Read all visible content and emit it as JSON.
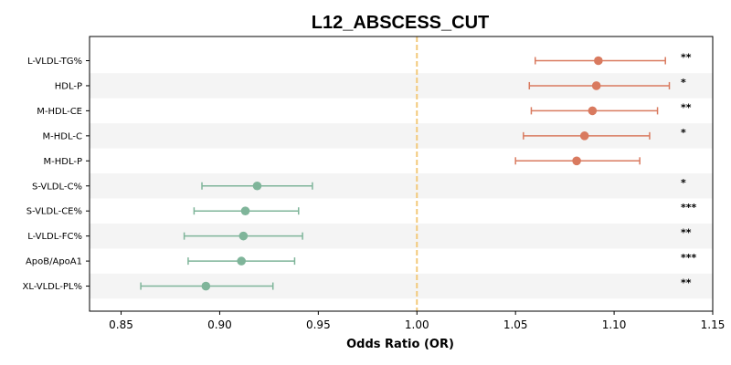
{
  "chart_data": {
    "type": "forest",
    "title": "L12_ABSCESS_CUT",
    "xlabel": "Odds Ratio (OR)",
    "xlim": [
      0.834,
      1.15
    ],
    "xticks": [
      0.85,
      0.9,
      0.95,
      1.0,
      1.05,
      1.1,
      1.15
    ],
    "xtick_labels": [
      "0.85",
      "0.90",
      "0.95",
      "1.00",
      "1.05",
      "1.10",
      "1.15"
    ],
    "reference_line": 1.0,
    "reference_line_style": "dashed",
    "row_banding": true,
    "colors": {
      "increase": "#d97a5f",
      "decrease": "#7fb59a",
      "reference": "#f2c97a",
      "band": "#f4f4f4"
    },
    "rows": [
      {
        "label": "L-VLDL-TG%",
        "or": 1.092,
        "ci_low": 1.06,
        "ci_high": 1.126,
        "sig": "**",
        "direction": "increase"
      },
      {
        "label": "HDL-P",
        "or": 1.091,
        "ci_low": 1.057,
        "ci_high": 1.128,
        "sig": "*",
        "direction": "increase"
      },
      {
        "label": "M-HDL-CE",
        "or": 1.089,
        "ci_low": 1.058,
        "ci_high": 1.122,
        "sig": "**",
        "direction": "increase"
      },
      {
        "label": "M-HDL-C",
        "or": 1.085,
        "ci_low": 1.054,
        "ci_high": 1.118,
        "sig": "*",
        "direction": "increase"
      },
      {
        "label": "M-HDL-P",
        "or": 1.081,
        "ci_low": 1.05,
        "ci_high": 1.113,
        "sig": "",
        "direction": "increase"
      },
      {
        "label": "S-VLDL-C%",
        "or": 0.919,
        "ci_low": 0.891,
        "ci_high": 0.947,
        "sig": "*",
        "direction": "decrease"
      },
      {
        "label": "S-VLDL-CE%",
        "or": 0.913,
        "ci_low": 0.887,
        "ci_high": 0.94,
        "sig": "***",
        "direction": "decrease"
      },
      {
        "label": "L-VLDL-FC%",
        "or": 0.912,
        "ci_low": 0.882,
        "ci_high": 0.942,
        "sig": "**",
        "direction": "decrease"
      },
      {
        "label": "ApoB/ApoA1",
        "or": 0.911,
        "ci_low": 0.884,
        "ci_high": 0.938,
        "sig": "***",
        "direction": "decrease"
      },
      {
        "label": "XL-VLDL-PL%",
        "or": 0.893,
        "ci_low": 0.86,
        "ci_high": 0.927,
        "sig": "**",
        "direction": "decrease"
      }
    ]
  }
}
